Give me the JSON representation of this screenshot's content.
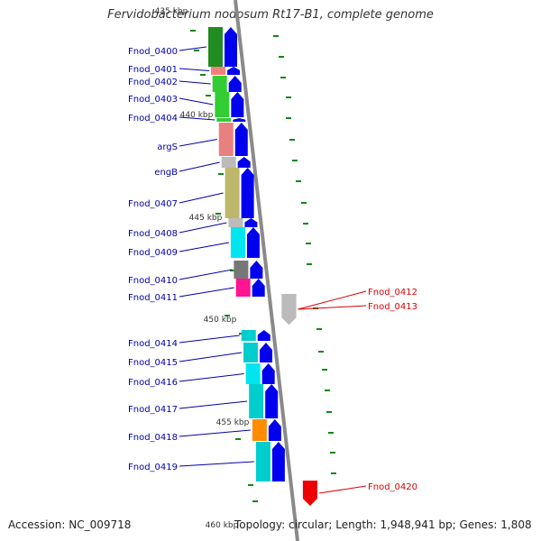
{
  "title": "Fervidobacterium nodosum Rt17-B1, complete genome",
  "accession": "Accession: NC_009718",
  "summary": "Topology: circular; Length: 1,948,941 bp; Genes: 1,808",
  "colors": {
    "backbone": "#8a8a8a",
    "arrow": "#0000ee",
    "label_left": "#0000aa",
    "label_right": "#dd0000",
    "gc_tick": "#118811"
  },
  "ticks": [
    {
      "label": "435 kbp"
    },
    {
      "label": "440 kbp"
    },
    {
      "label": "445 kbp"
    },
    {
      "label": "450 kbp"
    },
    {
      "label": "455 kbp"
    },
    {
      "label": "460 kbp"
    }
  ],
  "genes": [
    {
      "name": "Fnod_0400",
      "side": "left",
      "strand": "+",
      "color": "#228B22"
    },
    {
      "name": "Fnod_0401",
      "side": "left",
      "strand": "+",
      "color": "#F08080"
    },
    {
      "name": "Fnod_0402",
      "side": "left",
      "strand": "+",
      "color": "#32CD32"
    },
    {
      "name": "Fnod_0403",
      "side": "left",
      "strand": "+",
      "color": "#32CD32"
    },
    {
      "name": "Fnod_0404",
      "side": "left",
      "strand": "+",
      "color": "#32CD32"
    },
    {
      "name": "argS",
      "side": "left",
      "strand": "+",
      "color": "#E88080"
    },
    {
      "name": "engB",
      "side": "left",
      "strand": "+",
      "color": "#BBBBBB"
    },
    {
      "name": "Fnod_0407",
      "side": "left",
      "strand": "+",
      "color": "#BDB76B"
    },
    {
      "name": "Fnod_0408",
      "side": "left",
      "strand": "+",
      "color": "#BBBBBB"
    },
    {
      "name": "Fnod_0409",
      "side": "left",
      "strand": "+",
      "color": "#00E5EE"
    },
    {
      "name": "Fnod_0410",
      "side": "left",
      "strand": "+",
      "color": "#777777"
    },
    {
      "name": "Fnod_0411",
      "side": "left",
      "strand": "+",
      "color": "#FF1493"
    },
    {
      "name": "Fnod_0412",
      "side": "right",
      "strand": "-",
      "color": "#EE0000"
    },
    {
      "name": "Fnod_0413",
      "side": "right",
      "strand": "-",
      "color": "#BBBBBB"
    },
    {
      "name": "Fnod_0414",
      "side": "left",
      "strand": "+",
      "color": "#00CDCD"
    },
    {
      "name": "Fnod_0415",
      "side": "left",
      "strand": "+",
      "color": "#00CDCD"
    },
    {
      "name": "Fnod_0416",
      "side": "left",
      "strand": "+",
      "color": "#00E5EE"
    },
    {
      "name": "Fnod_0417",
      "side": "left",
      "strand": "+",
      "color": "#00CDCD"
    },
    {
      "name": "Fnod_0418",
      "side": "left",
      "strand": "+",
      "color": "#FF8C00"
    },
    {
      "name": "Fnod_0419",
      "side": "left",
      "strand": "+",
      "color": "#00CDCD"
    },
    {
      "name": "Fnod_0420",
      "side": "right",
      "strand": "-",
      "color": "#EE0000"
    }
  ]
}
